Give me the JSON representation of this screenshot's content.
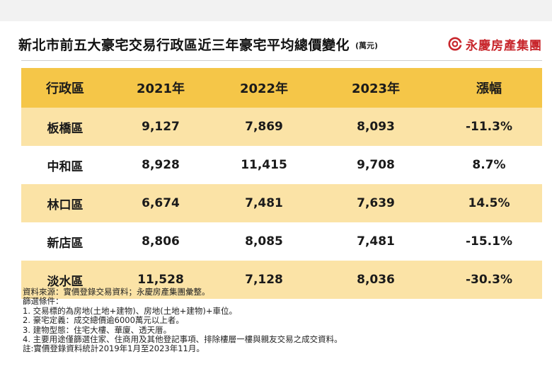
{
  "header": {
    "title": "新北市前五大豪宅交易行政區近三年豪宅平均總價變化",
    "unit": "(萬元)",
    "brand": "永慶房產集團"
  },
  "colors": {
    "header_fill": "#f5c648",
    "band_fill": "#fbe3a6",
    "brand_red": "#c8262c"
  },
  "chart_data": {
    "type": "table",
    "columns": [
      "行政區",
      "2021年",
      "2022年",
      "2023年",
      "漲幅"
    ],
    "rows": [
      [
        "板橋區",
        "9,127",
        "7,869",
        "8,093",
        "-11.3%"
      ],
      [
        "中和區",
        "8,928",
        "11,415",
        "9,708",
        "8.7%"
      ],
      [
        "林口區",
        "6,674",
        "7,481",
        "7,639",
        "14.5%"
      ],
      [
        "新店區",
        "8,806",
        "8,085",
        "7,481",
        "-15.1%"
      ],
      [
        "淡水區",
        "11,528",
        "7,128",
        "8,036",
        "-30.3%"
      ]
    ]
  },
  "notes": [
    "資料來源：實價登錄交易資料；永慶房產集團彙整。",
    "篩選條件：",
    "1. 交易標的為房地(土地+建物)、房地(土地+建物)+車位。",
    "2. 豪宅定義：成交總價逾6000萬元以上者。",
    "3. 建物型態：住宅大樓、華廈、透天厝。",
    "4. 主要用途僅篩選住家、住商用及其他登記事項、排除樓層一樓與親友交易之成交資料。",
    "註:實價登錄資料統計2019年1月至2023年11月。"
  ]
}
